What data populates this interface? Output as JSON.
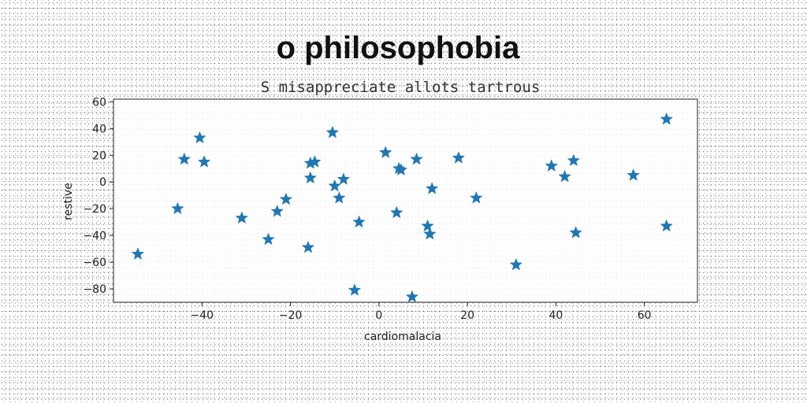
{
  "chart_data": {
    "type": "scatter",
    "title": "o philosophobia",
    "subtitle": "S misappreciate allots tartrous",
    "xlabel": "cardiomalacia",
    "ylabel": "restive",
    "xlim": [
      -60,
      72
    ],
    "ylim": [
      -90,
      62
    ],
    "xticks": [
      -40,
      -20,
      0,
      20,
      40,
      60
    ],
    "yticks": [
      60,
      40,
      20,
      0,
      -20,
      -40,
      -60,
      -80
    ],
    "grid": false,
    "marker": "star",
    "color": "#1f77b4",
    "series": [
      {
        "points": [
          [
            -54.5,
            -54
          ],
          [
            -45.5,
            -20
          ],
          [
            -44,
            17
          ],
          [
            -40.5,
            33
          ],
          [
            -39.5,
            15
          ],
          [
            -31,
            -27
          ],
          [
            -25,
            -43
          ],
          [
            -23,
            -22
          ],
          [
            -21,
            -13
          ],
          [
            -16,
            -49
          ],
          [
            -15.5,
            3
          ],
          [
            -15.5,
            14
          ],
          [
            -14.5,
            15
          ],
          [
            -10.5,
            37
          ],
          [
            -10,
            -3
          ],
          [
            -9,
            -12
          ],
          [
            -8,
            2
          ],
          [
            -5.5,
            -81
          ],
          [
            -4.5,
            -30
          ],
          [
            1.5,
            22
          ],
          [
            4,
            -23
          ],
          [
            4.5,
            10
          ],
          [
            5,
            9
          ],
          [
            7.5,
            -86
          ],
          [
            8.5,
            17
          ],
          [
            11,
            -33
          ],
          [
            11.5,
            -39
          ],
          [
            12,
            -5
          ],
          [
            18,
            18
          ],
          [
            22,
            -12
          ],
          [
            31,
            -62
          ],
          [
            39,
            12
          ],
          [
            42,
            4
          ],
          [
            44,
            16
          ],
          [
            44.5,
            -38
          ],
          [
            57.5,
            5
          ],
          [
            65,
            47
          ],
          [
            65,
            -33
          ]
        ]
      }
    ]
  }
}
